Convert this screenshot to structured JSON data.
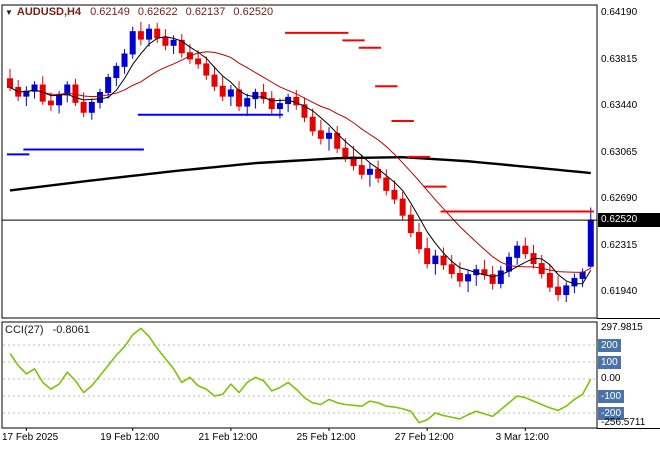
{
  "header": {
    "marker": "▼",
    "symbol_period": "AUDUSD,H4",
    "open": "0.62149",
    "high": "0.62622",
    "low": "0.62137",
    "close": "0.62520"
  },
  "colors": {
    "bull": "#0000d0",
    "bear": "#e60000",
    "ma_fast": "#000000",
    "ma_med": "#c00000",
    "ma_slow": "#000000",
    "stop_blue": "#0000ff",
    "stop_red": "#ff0000",
    "cci_line": "#7cc40a",
    "level_badge": "#4a74a8",
    "grid": "#b8b8b8",
    "border": "#000000"
  },
  "axes": {
    "price_ticks": [
      "0.64190",
      "0.63815",
      "0.63440",
      "0.63065",
      "0.62690",
      "0.62315",
      "0.61940"
    ],
    "current_price_label": "0.62520",
    "time_labels": [
      {
        "label": "17 Feb 2025",
        "index": 2
      },
      {
        "label": "19 Feb 12:00",
        "index": 15
      },
      {
        "label": "21 Feb 12:00",
        "index": 27
      },
      {
        "label": "25 Feb 12:00",
        "index": 39
      },
      {
        "label": "27 Feb 12:00",
        "index": 51
      },
      {
        "label": "3 Mar 12:00",
        "index": 63
      }
    ]
  },
  "cci_panel": {
    "name": "CCI(27)",
    "value": "-0.8061",
    "levels": [
      {
        "label": "297.9815",
        "value": 297.9815,
        "style": "plain"
      },
      {
        "label": "200",
        "value": 200,
        "style": "badge"
      },
      {
        "label": "100",
        "value": 100,
        "style": "badge"
      },
      {
        "label": "0.00",
        "value": 0,
        "style": "plain"
      },
      {
        "label": "-100",
        "value": -100,
        "style": "badge"
      },
      {
        "label": "-200",
        "value": -200,
        "style": "badge"
      },
      {
        "label": "-256.5711",
        "value": -256.5711,
        "style": "plain"
      }
    ]
  },
  "chart_data": {
    "type": "candlestick",
    "symbol": "AUDUSD",
    "timeframe": "H4",
    "title": "AUDUSD,H4",
    "price_range": [
      0.61731,
      0.64255
    ],
    "current_price": 0.6252,
    "ohlc": [
      [
        0.6366,
        0.6374,
        0.6356,
        0.6359
      ],
      [
        0.6359,
        0.6365,
        0.6348,
        0.6352
      ],
      [
        0.6352,
        0.636,
        0.6344,
        0.6356
      ],
      [
        0.6356,
        0.6364,
        0.635,
        0.6361
      ],
      [
        0.6361,
        0.6368,
        0.6345,
        0.6348
      ],
      [
        0.6348,
        0.6355,
        0.634,
        0.6345
      ],
      [
        0.6345,
        0.6356,
        0.6338,
        0.6353
      ],
      [
        0.6353,
        0.6364,
        0.6347,
        0.6361
      ],
      [
        0.6361,
        0.6366,
        0.6344,
        0.6347
      ],
      [
        0.6347,
        0.6355,
        0.6335,
        0.6339
      ],
      [
        0.6339,
        0.635,
        0.6333,
        0.6347
      ],
      [
        0.6347,
        0.6358,
        0.6342,
        0.6355
      ],
      [
        0.6355,
        0.637,
        0.635,
        0.6367
      ],
      [
        0.6367,
        0.6379,
        0.636,
        0.6376
      ],
      [
        0.6376,
        0.639,
        0.637,
        0.6386
      ],
      [
        0.6386,
        0.6408,
        0.6382,
        0.6404
      ],
      [
        0.6404,
        0.6412,
        0.6393,
        0.6398
      ],
      [
        0.6398,
        0.641,
        0.6392,
        0.6406
      ],
      [
        0.6406,
        0.6411,
        0.6395,
        0.6399
      ],
      [
        0.6399,
        0.6406,
        0.6389,
        0.6393
      ],
      [
        0.6393,
        0.6401,
        0.6386,
        0.6397
      ],
      [
        0.6397,
        0.6402,
        0.6383,
        0.6387
      ],
      [
        0.6387,
        0.6394,
        0.6378,
        0.6382
      ],
      [
        0.6382,
        0.6389,
        0.6374,
        0.6378
      ],
      [
        0.6378,
        0.6384,
        0.6365,
        0.6369
      ],
      [
        0.6369,
        0.6376,
        0.6356,
        0.636
      ],
      [
        0.636,
        0.6368,
        0.6348,
        0.6352
      ],
      [
        0.6352,
        0.6361,
        0.6344,
        0.6357
      ],
      [
        0.6357,
        0.6364,
        0.634,
        0.6344
      ],
      [
        0.6344,
        0.6354,
        0.6336,
        0.635
      ],
      [
        0.635,
        0.6358,
        0.6342,
        0.6355
      ],
      [
        0.6355,
        0.6362,
        0.6346,
        0.635
      ],
      [
        0.635,
        0.6356,
        0.6338,
        0.6342
      ],
      [
        0.6342,
        0.635,
        0.6334,
        0.6346
      ],
      [
        0.6346,
        0.6354,
        0.6339,
        0.6351
      ],
      [
        0.6351,
        0.6357,
        0.6341,
        0.6345
      ],
      [
        0.6345,
        0.6351,
        0.6331,
        0.6335
      ],
      [
        0.6335,
        0.6342,
        0.632,
        0.6324
      ],
      [
        0.6324,
        0.6333,
        0.6313,
        0.6318
      ],
      [
        0.6318,
        0.6327,
        0.6308,
        0.6322
      ],
      [
        0.6322,
        0.6328,
        0.6306,
        0.631
      ],
      [
        0.631,
        0.6318,
        0.6299,
        0.6303
      ],
      [
        0.6303,
        0.6312,
        0.6292,
        0.6296
      ],
      [
        0.6296,
        0.6305,
        0.6285,
        0.6289
      ],
      [
        0.6289,
        0.6298,
        0.6279,
        0.6293
      ],
      [
        0.6293,
        0.63,
        0.6282,
        0.6286
      ],
      [
        0.6286,
        0.6293,
        0.6272,
        0.6276
      ],
      [
        0.6276,
        0.6284,
        0.6265,
        0.6269
      ],
      [
        0.6269,
        0.6275,
        0.6252,
        0.6256
      ],
      [
        0.6256,
        0.6264,
        0.6238,
        0.6242
      ],
      [
        0.6242,
        0.625,
        0.6225,
        0.6229
      ],
      [
        0.6229,
        0.6238,
        0.6213,
        0.6217
      ],
      [
        0.6217,
        0.6228,
        0.6208,
        0.6223
      ],
      [
        0.6223,
        0.623,
        0.6212,
        0.6216
      ],
      [
        0.6216,
        0.6224,
        0.6205,
        0.6209
      ],
      [
        0.6209,
        0.6218,
        0.6198,
        0.6203
      ],
      [
        0.6203,
        0.6212,
        0.6194,
        0.6208
      ],
      [
        0.6208,
        0.6216,
        0.6199,
        0.6212
      ],
      [
        0.6212,
        0.622,
        0.6204,
        0.6208
      ],
      [
        0.6208,
        0.6215,
        0.6196,
        0.6201
      ],
      [
        0.6201,
        0.6215,
        0.6197,
        0.6211
      ],
      [
        0.6211,
        0.6226,
        0.6206,
        0.6222
      ],
      [
        0.6222,
        0.6235,
        0.6216,
        0.6231
      ],
      [
        0.6231,
        0.6238,
        0.6221,
        0.6225
      ],
      [
        0.6225,
        0.6232,
        0.6213,
        0.6217
      ],
      [
        0.6217,
        0.6224,
        0.6205,
        0.6209
      ],
      [
        0.6209,
        0.6216,
        0.6194,
        0.6198
      ],
      [
        0.6198,
        0.6207,
        0.6187,
        0.6192
      ],
      [
        0.6192,
        0.6202,
        0.6186,
        0.6199
      ],
      [
        0.6199,
        0.6209,
        0.6193,
        0.6205
      ],
      [
        0.6205,
        0.6213,
        0.6198,
        0.621
      ],
      [
        0.62149,
        0.62622,
        0.62137,
        0.6252
      ]
    ],
    "overlays": {
      "ma_fast_period": 5,
      "ma_med_period": 13,
      "ma_slow_anchors": [
        [
          0,
          0.6276
        ],
        [
          10,
          0.6284
        ],
        [
          20,
          0.62915
        ],
        [
          30,
          0.6298
        ],
        [
          40,
          0.6302
        ],
        [
          48,
          0.63028
        ],
        [
          56,
          0.62995
        ],
        [
          64,
          0.62945
        ],
        [
          71,
          0.629
        ]
      ],
      "blue_stop": [
        {
          "from": 0,
          "to": 2,
          "price": 0.6305
        },
        {
          "from": 2,
          "to": 16,
          "price": 0.6309
        },
        {
          "from": 16,
          "to": 33,
          "price": 0.6337
        }
      ],
      "red_stop": [
        {
          "from": 34,
          "to": 41,
          "price": 0.6403
        },
        {
          "from": 41,
          "to": 43,
          "price": 0.6397
        },
        {
          "from": 43,
          "to": 45,
          "price": 0.6391
        },
        {
          "from": 45,
          "to": 47,
          "price": 0.636
        },
        {
          "from": 47,
          "to": 49,
          "price": 0.6332
        },
        {
          "from": 49,
          "to": 51,
          "price": 0.6303
        },
        {
          "from": 51,
          "to": 53,
          "price": 0.6279
        },
        {
          "from": 53,
          "to": 71,
          "price": 0.6259
        }
      ]
    },
    "cci": {
      "period": 27,
      "last_value": -0.8061,
      "values": [
        150,
        80,
        30,
        60,
        -20,
        -60,
        -30,
        40,
        -10,
        -80,
        -40,
        20,
        80,
        140,
        190,
        260,
        297.9815,
        250,
        180,
        120,
        60,
        -20,
        10,
        -40,
        -60,
        -100,
        -90,
        -30,
        -80,
        -20,
        10,
        -10,
        -70,
        -50,
        -20,
        -60,
        -110,
        -140,
        -150,
        -120,
        -140,
        -150,
        -155,
        -160,
        -130,
        -140,
        -160,
        -165,
        -175,
        -190,
        -256.5711,
        -240,
        -200,
        -215,
        -225,
        -235,
        -210,
        -190,
        -205,
        -220,
        -180,
        -140,
        -100,
        -110,
        -130,
        -150,
        -170,
        -185,
        -160,
        -120,
        -90,
        -0.8061
      ]
    }
  }
}
